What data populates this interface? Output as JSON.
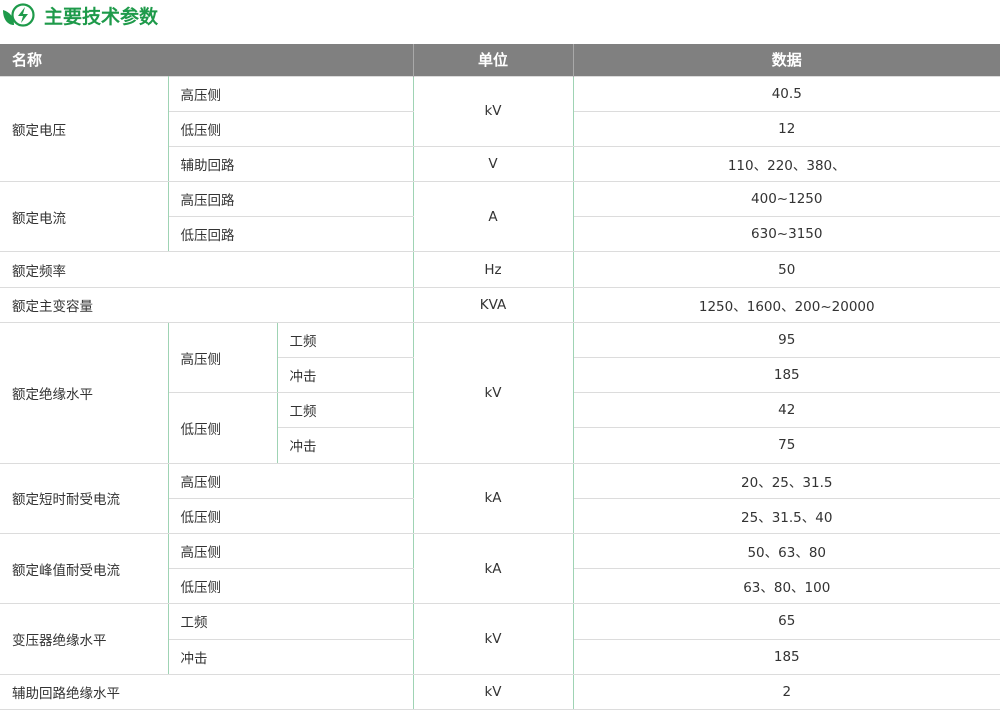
{
  "title": "主要技术参数",
  "accent": "#1e9a4a",
  "header": {
    "name": "名称",
    "unit": "单位",
    "data": "数据"
  },
  "rows": [
    [
      {
        "t": "额定电压",
        "rs": 3
      },
      {
        "t": "高压侧",
        "cs": 2
      },
      {
        "t": "kV",
        "rs": 2,
        "c": 1
      },
      {
        "t": "40.5",
        "c": 1
      }
    ],
    [
      {
        "t": "低压侧",
        "cs": 2
      },
      {
        "t": "12",
        "c": 1
      }
    ],
    [
      {
        "t": "辅助回路",
        "cs": 2
      },
      {
        "t": "V",
        "c": 1
      },
      {
        "t": "110、220、380、",
        "c": 1
      }
    ],
    [
      {
        "t": "额定电流",
        "rs": 2
      },
      {
        "t": "高压回路",
        "cs": 2
      },
      {
        "t": "A",
        "rs": 2,
        "c": 1
      },
      {
        "t": "400~1250",
        "c": 1
      }
    ],
    [
      {
        "t": "低压回路",
        "cs": 2
      },
      {
        "t": "630~3150",
        "c": 1
      }
    ],
    [
      {
        "t": "额定频率",
        "cs": 3
      },
      {
        "t": "Hz",
        "c": 1
      },
      {
        "t": "50",
        "c": 1
      }
    ],
    [
      {
        "t": "额定主变容量",
        "cs": 3
      },
      {
        "t": "KVA",
        "c": 1
      },
      {
        "t": "1250、1600、200~20000",
        "c": 1
      }
    ],
    [
      {
        "t": "额定绝缘水平",
        "rs": 4
      },
      {
        "t": "高压侧",
        "rs": 2
      },
      {
        "t": "工频"
      },
      {
        "t": "kV",
        "rs": 4,
        "c": 1
      },
      {
        "t": "95",
        "c": 1
      }
    ],
    [
      {
        "t": "冲击"
      },
      {
        "t": "185",
        "c": 1
      }
    ],
    [
      {
        "t": "低压侧",
        "rs": 2
      },
      {
        "t": "工频"
      },
      {
        "t": "42",
        "c": 1
      }
    ],
    [
      {
        "t": "冲击"
      },
      {
        "t": "75",
        "c": 1
      }
    ],
    [
      {
        "t": "额定短时耐受电流",
        "rs": 2
      },
      {
        "t": "高压侧",
        "cs": 2
      },
      {
        "t": "kA",
        "rs": 2,
        "c": 1
      },
      {
        "t": "20、25、31.5",
        "c": 1
      }
    ],
    [
      {
        "t": "低压侧",
        "cs": 2
      },
      {
        "t": "25、31.5、40",
        "c": 1
      }
    ],
    [
      {
        "t": "额定峰值耐受电流",
        "rs": 2
      },
      {
        "t": "高压侧",
        "cs": 2
      },
      {
        "t": "kA",
        "rs": 2,
        "c": 1
      },
      {
        "t": "50、63、80",
        "c": 1
      }
    ],
    [
      {
        "t": "低压侧",
        "cs": 2
      },
      {
        "t": "63、80、100",
        "c": 1
      }
    ],
    [
      {
        "t": "变压器绝缘水平",
        "rs": 2
      },
      {
        "t": "工频",
        "cs": 2
      },
      {
        "t": "kV",
        "rs": 2,
        "c": 1
      },
      {
        "t": "65",
        "c": 1
      }
    ],
    [
      {
        "t": "冲击",
        "cs": 2
      },
      {
        "t": "185",
        "c": 1
      }
    ],
    [
      {
        "t": "辅助回路绝缘水平",
        "cs": 3
      },
      {
        "t": "kV",
        "c": 1
      },
      {
        "t": "2",
        "c": 1
      }
    ]
  ]
}
